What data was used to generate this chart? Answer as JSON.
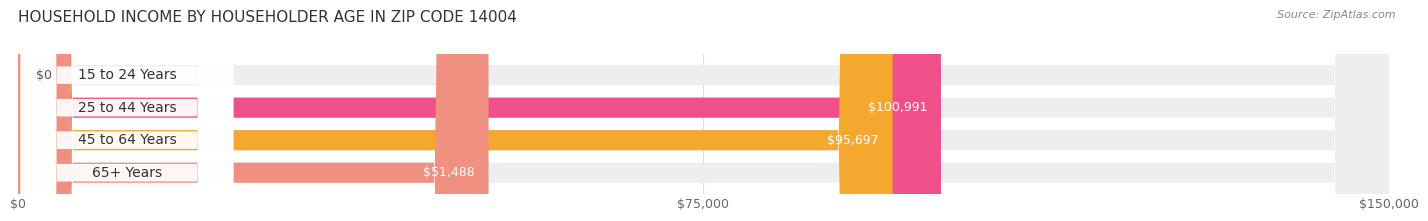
{
  "title": "HOUSEHOLD INCOME BY HOUSEHOLDER AGE IN ZIP CODE 14004",
  "source": "Source: ZipAtlas.com",
  "categories": [
    "15 to 24 Years",
    "25 to 44 Years",
    "45 to 64 Years",
    "65+ Years"
  ],
  "values": [
    0,
    100991,
    95697,
    51488
  ],
  "labels": [
    "$0",
    "$100,991",
    "$95,697",
    "$51,488"
  ],
  "bar_colors": [
    "#a0a8d8",
    "#f0508a",
    "#f5a830",
    "#f09080"
  ],
  "bar_bg_color": "#eeeeee",
  "xlim": [
    0,
    150000
  ],
  "xticks": [
    0,
    75000,
    150000
  ],
  "xtick_labels": [
    "$0",
    "$75,000",
    "$150,000"
  ],
  "title_fontsize": 11,
  "source_fontsize": 8,
  "label_fontsize": 9,
  "category_fontsize": 10,
  "bar_height": 0.62,
  "background_color": "#ffffff",
  "grid_color": "#dddddd"
}
